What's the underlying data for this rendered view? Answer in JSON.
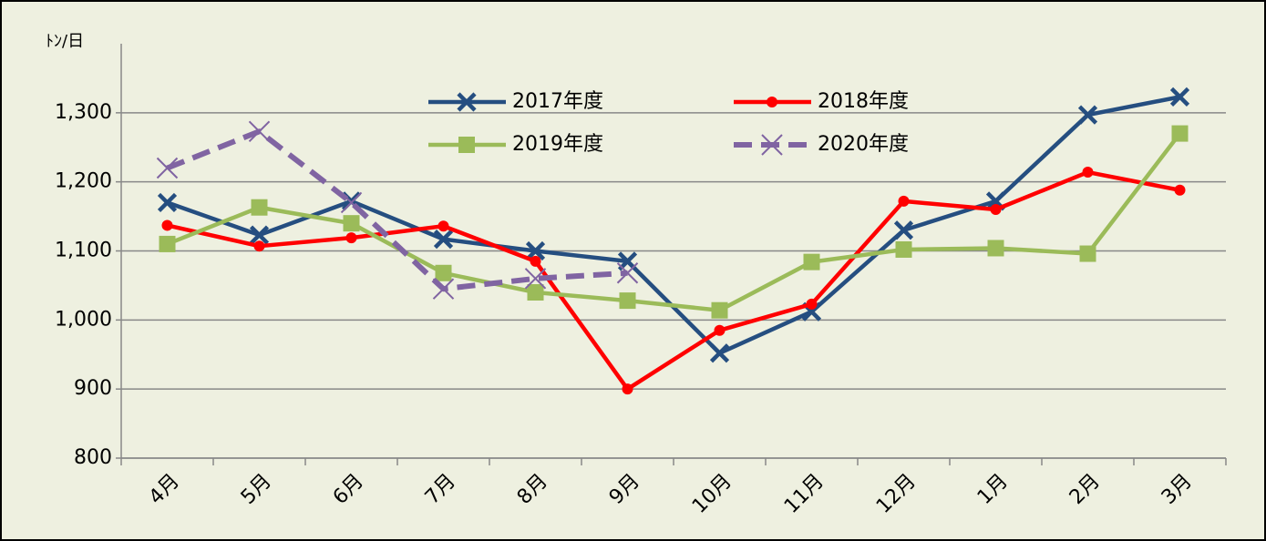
{
  "chart_data": {
    "type": "line",
    "y_label": "ﾄﾝ/日",
    "categories": [
      "4月",
      "5月",
      "6月",
      "7月",
      "8月",
      "9月",
      "10月",
      "11月",
      "12月",
      "1月",
      "2月",
      "3月"
    ],
    "series": [
      {
        "name": "2017年度",
        "color": "#254e80",
        "marker": "x",
        "dashed": false,
        "values": [
          1170,
          1123,
          1172,
          1117,
          1100,
          1085,
          952,
          1012,
          1130,
          1172,
          1297,
          1323
        ]
      },
      {
        "name": "2018年度",
        "color": "#ff0000",
        "marker": "circle",
        "dashed": false,
        "values": [
          1137,
          1107,
          1119,
          1136,
          1085,
          900,
          985,
          1023,
          1172,
          1160,
          1214,
          1188
        ]
      },
      {
        "name": "2019年度",
        "color": "#9bbb59",
        "marker": "square",
        "dashed": false,
        "values": [
          1110,
          1163,
          1140,
          1068,
          1040,
          1028,
          1014,
          1084,
          1102,
          1104,
          1096,
          1270
        ]
      },
      {
        "name": "2020年度",
        "color": "#8064a2",
        "marker": "x",
        "dashed": true,
        "values": [
          1220,
          1273,
          1170,
          1045,
          1060,
          1068,
          null,
          null,
          null,
          null,
          null,
          null
        ]
      }
    ],
    "ylim": [
      800,
      1400
    ],
    "yticks": [
      800,
      900,
      {
        "value": 1000,
        "label": "1,000"
      },
      {
        "value": 1100,
        "label": "1,100"
      },
      {
        "value": 1200,
        "label": "1,200"
      },
      {
        "value": 1300,
        "label": "1,300"
      }
    ],
    "grid": true
  }
}
